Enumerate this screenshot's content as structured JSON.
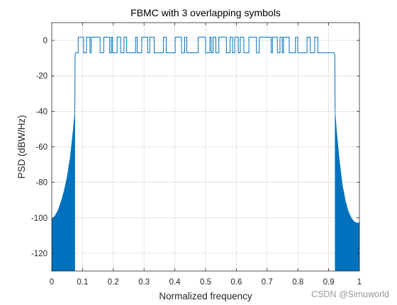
{
  "chart_data": {
    "type": "line",
    "title": "FBMC with 3 overlapping symbols",
    "xlabel": "Normalized frequency",
    "ylabel": "PSD (dBW/Hz)",
    "xlim": [
      0,
      1
    ],
    "ylim": [
      -130,
      10
    ],
    "xticks": [
      0,
      0.1,
      0.2,
      0.3,
      0.4,
      0.5,
      0.6,
      0.7,
      0.8,
      0.9,
      1
    ],
    "xtick_labels": [
      "0",
      "0.1",
      "0.2",
      "0.3",
      "0.4",
      "0.5",
      "0.6",
      "0.7",
      "0.8",
      "0.9",
      "1"
    ],
    "yticks": [
      0,
      -20,
      -40,
      -60,
      -80,
      -100,
      -120
    ],
    "ytick_labels": [
      "0",
      "-20",
      "-40",
      "-60",
      "-80",
      "-100",
      "-120"
    ],
    "grid": true,
    "legend": "none",
    "line_color": "#0072BD",
    "series": [
      {
        "passband": {
          "x_start": 0.078,
          "x_end": 0.918,
          "level_low": -7,
          "level_high": 1.8
        },
        "sidelobes": [
          {
            "x": [
              0.0,
              0.01,
              0.02,
              0.03,
              0.04,
              0.05,
              0.06,
              0.07,
              0.075
            ],
            "envelope_top": [
              -101,
              -99,
              -96,
              -91,
              -85,
              -77,
              -66,
              -50,
              -40
            ],
            "floor": -130
          },
          {
            "x": [
              0.921,
              0.925,
              0.935,
              0.945,
              0.955,
              0.965,
              0.975,
              0.985,
              0.995,
              1.0
            ],
            "envelope_top": [
              -40,
              -50,
              -68,
              -82,
              -91,
              -97,
              -100.5,
              -102.5,
              -103,
              -102.5
            ],
            "floor": -130
          }
        ]
      }
    ]
  },
  "watermark": "CSDN @Simuworld"
}
